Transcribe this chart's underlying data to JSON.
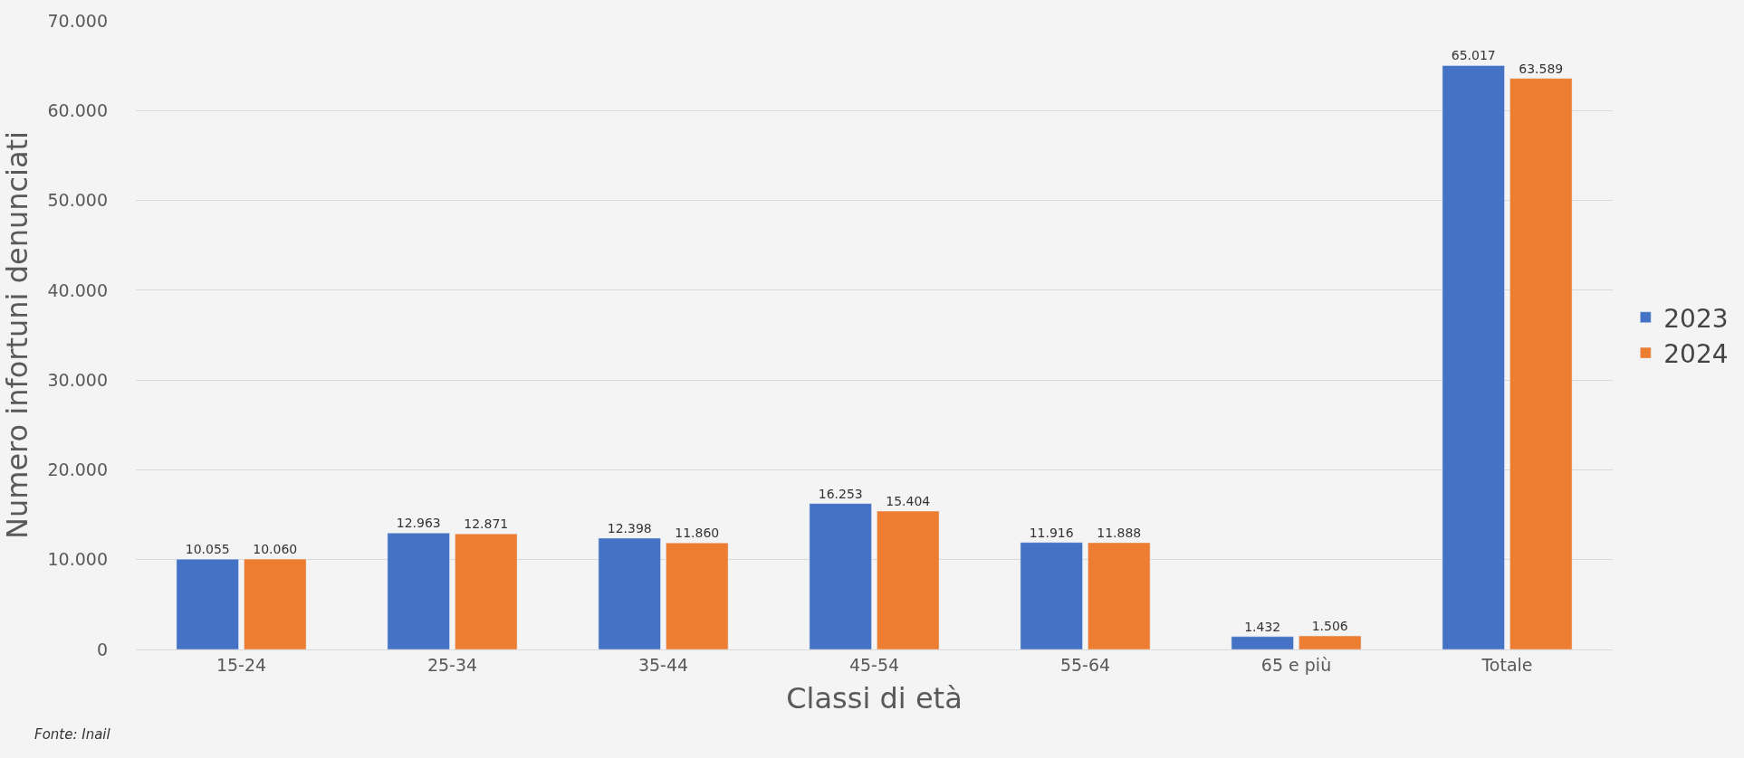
{
  "chart_data": {
    "type": "bar",
    "xlabel": "Classi di età",
    "ylabel": "Numero infortuni denunciati",
    "categories": [
      "15-24",
      "25-34",
      "35-44",
      "45-54",
      "55-64",
      "65 e più",
      "Totale"
    ],
    "series": [
      {
        "name": "2023",
        "color": "#4472c4",
        "values": [
          10055,
          12963,
          12398,
          16253,
          11916,
          1432,
          65017
        ],
        "value_labels": [
          "10.055",
          "12.963",
          "12.398",
          "16.253",
          "11.916",
          "1.432",
          "65.017"
        ]
      },
      {
        "name": "2024",
        "color": "#ed7d31",
        "values": [
          10060,
          12871,
          11860,
          15404,
          11888,
          1506,
          63589
        ],
        "value_labels": [
          "10.060",
          "12.871",
          "11.860",
          "15.404",
          "11.888",
          "1.506",
          "63.589"
        ]
      }
    ],
    "ylim": [
      0,
      70000
    ],
    "yticks": [
      {
        "value": 0,
        "label": "0"
      },
      {
        "value": 10000,
        "label": "10.000"
      },
      {
        "value": 20000,
        "label": "20.000"
      },
      {
        "value": 30000,
        "label": "30.000"
      },
      {
        "value": 40000,
        "label": "40.000"
      },
      {
        "value": 50000,
        "label": "50.000"
      },
      {
        "value": 60000,
        "label": "60.000"
      },
      {
        "value": 70000,
        "label": "70.000"
      }
    ],
    "grid": "y",
    "legend": "right",
    "annotations": [
      "Fonte: Inail"
    ]
  }
}
